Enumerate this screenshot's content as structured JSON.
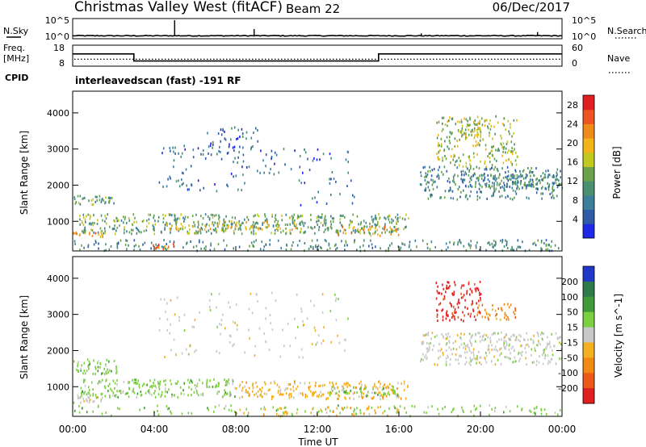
{
  "header": {
    "station": "Christmas Valley West (fitACF)",
    "beam": "Beam 22",
    "date": "06/Dec/2017"
  },
  "top_panels": {
    "noise": {
      "left_label": "N.Sky",
      "right_label": "N.Search",
      "left_ticks": [
        "10^5",
        "10^0"
      ],
      "right_ticks": [
        "10^5",
        "10^0"
      ],
      "sky_level_log10": 0.4,
      "spikes": [
        {
          "time_h": 5.0,
          "value_log10": 5.0
        },
        {
          "time_h": 8.9,
          "value_log10": 2.4
        },
        {
          "time_h": 17.1,
          "value_log10": 1.1
        },
        {
          "time_h": 22.8,
          "value_log10": 1.5
        }
      ]
    },
    "frequency": {
      "left_label_1": "Freq.",
      "left_label_2": "[MHz]",
      "right_label": "Nave",
      "left_ticks": [
        "18",
        "8"
      ],
      "right_ticks": [
        "60",
        "0"
      ],
      "freq_steps": [
        {
          "from_h": 0,
          "to_h": 3.0,
          "mhz": 14
        },
        {
          "from_h": 3.0,
          "to_h": 15.0,
          "mhz": 10
        },
        {
          "from_h": 15.0,
          "to_h": 24.0,
          "mhz": 14
        }
      ],
      "nave_dotted_mhz": 11
    },
    "cpid": {
      "label": "CPID",
      "program": "interleavedscan (fast) -191 RF"
    }
  },
  "chart_data": [
    {
      "type": "heatmap",
      "title": "Power",
      "ylabel": "Slant Range [km]",
      "xlabel": "",
      "ylim": [
        180,
        4600
      ],
      "yticks": [
        "1000",
        "2000",
        "3000",
        "4000"
      ],
      "colorbar": {
        "label": "Power [dB]",
        "ticks": [
          "4",
          "8",
          "12",
          "16",
          "20",
          "24",
          "28"
        ],
        "range": [
          0,
          30
        ],
        "colors": [
          "#1e28e6",
          "#2e5aa8",
          "#3d7e9a",
          "#4a9070",
          "#6aa14a",
          "#c2c822",
          "#f2b418",
          "#f08a1a",
          "#ec5520",
          "#e02020"
        ]
      },
      "regions": [
        {
          "t0": 0.0,
          "t1": 2.2,
          "r0": 1450,
          "r1": 1700,
          "level": 11,
          "density": 0.55
        },
        {
          "t0": 0.3,
          "t1": 16.5,
          "r0": 650,
          "r1": 1200,
          "level": 12,
          "density": 0.45
        },
        {
          "t0": 4.5,
          "t1": 11.0,
          "r0": 750,
          "r1": 1000,
          "level": 18,
          "density": 0.35
        },
        {
          "t0": 13.0,
          "t1": 16.0,
          "r0": 600,
          "r1": 850,
          "level": 22,
          "density": 0.35
        },
        {
          "t0": 0.0,
          "t1": 1.5,
          "r0": 550,
          "r1": 700,
          "level": 20,
          "density": 0.55
        },
        {
          "t0": 0.0,
          "t1": 24.0,
          "r0": 180,
          "r1": 480,
          "level": 9,
          "density": 0.28
        },
        {
          "t0": 3.8,
          "t1": 5.0,
          "r0": 230,
          "r1": 380,
          "level": 25,
          "density": 0.5
        },
        {
          "t0": 4.2,
          "t1": 8.5,
          "r0": 1800,
          "r1": 3100,
          "level": 7,
          "density": 0.1
        },
        {
          "t0": 6.5,
          "t1": 9.2,
          "r0": 2800,
          "r1": 3600,
          "level": 6,
          "density": 0.18
        },
        {
          "t0": 8.5,
          "t1": 13.5,
          "r0": 2300,
          "r1": 3000,
          "level": 6,
          "density": 0.1
        },
        {
          "t0": 11.0,
          "t1": 14.0,
          "r0": 1400,
          "r1": 2200,
          "level": 6,
          "density": 0.07
        },
        {
          "t0": 17.8,
          "t1": 21.8,
          "r0": 2500,
          "r1": 3900,
          "level": 15,
          "density": 0.28
        },
        {
          "t0": 18.8,
          "t1": 20.0,
          "r0": 3300,
          "r1": 3800,
          "level": 16,
          "density": 0.45
        },
        {
          "t0": 20.5,
          "t1": 21.7,
          "r0": 2900,
          "r1": 3200,
          "level": 14,
          "density": 0.5
        },
        {
          "t0": 17.0,
          "t1": 24.0,
          "r0": 1600,
          "r1": 2500,
          "level": 9,
          "density": 0.35
        },
        {
          "t0": 19.5,
          "t1": 24.0,
          "r0": 1900,
          "r1": 2300,
          "level": 10,
          "density": 0.5
        }
      ]
    },
    {
      "type": "heatmap",
      "title": "Velocity",
      "ylabel": "Slant Range [km]",
      "xlabel": "Time UT",
      "ylim": [
        180,
        4600
      ],
      "yticks": [
        "1000",
        "2000",
        "3000",
        "4000"
      ],
      "xticks": [
        "00:00",
        "04:00",
        "08:00",
        "12:00",
        "16:00",
        "20:00",
        "00:00"
      ],
      "colorbar": {
        "label": "Velocity [m s^-1]",
        "ticks": [
          "200",
          "100",
          "50",
          "15",
          "-15",
          "-50",
          "-100",
          "-200"
        ],
        "colors": [
          "#2038c8",
          "#2e7a4a",
          "#3f9a3a",
          "#7ccf40",
          "#c8c8c8",
          "#f3b020",
          "#f08a14",
          "#ec5a18",
          "#e02020"
        ]
      },
      "regions": [
        {
          "t0": 0.0,
          "t1": 2.2,
          "r0": 1350,
          "r1": 1750,
          "color_index": 3,
          "density": 0.5
        },
        {
          "t0": 0.3,
          "t1": 8.0,
          "r0": 700,
          "r1": 1200,
          "color_index": 3,
          "density": 0.45
        },
        {
          "t0": 8.0,
          "t1": 16.5,
          "r0": 650,
          "r1": 1150,
          "color_index": 5,
          "density": 0.4
        },
        {
          "t0": 12.5,
          "t1": 16.0,
          "r0": 700,
          "r1": 1000,
          "color_index": 3,
          "density": 0.4
        },
        {
          "t0": 0.0,
          "t1": 1.5,
          "r0": 550,
          "r1": 800,
          "color_index": 4,
          "density": 0.5
        },
        {
          "t0": 0.0,
          "t1": 24.0,
          "r0": 180,
          "r1": 480,
          "color_index": 3,
          "density": 0.15
        },
        {
          "t0": 8.0,
          "t1": 16.0,
          "r0": 180,
          "r1": 450,
          "color_index": 5,
          "density": 0.2
        },
        {
          "t0": 4.2,
          "t1": 13.5,
          "r0": 1800,
          "r1": 3600,
          "color_index": 4,
          "density": 0.06
        },
        {
          "t0": 17.8,
          "t1": 20.0,
          "r0": 2800,
          "r1": 3900,
          "color_index": 8,
          "density": 0.38
        },
        {
          "t0": 19.8,
          "t1": 21.7,
          "r0": 2850,
          "r1": 3300,
          "color_index": 6,
          "density": 0.4
        },
        {
          "t0": 17.0,
          "t1": 24.0,
          "r0": 1600,
          "r1": 2500,
          "color_index": 4,
          "density": 0.4
        }
      ]
    }
  ]
}
